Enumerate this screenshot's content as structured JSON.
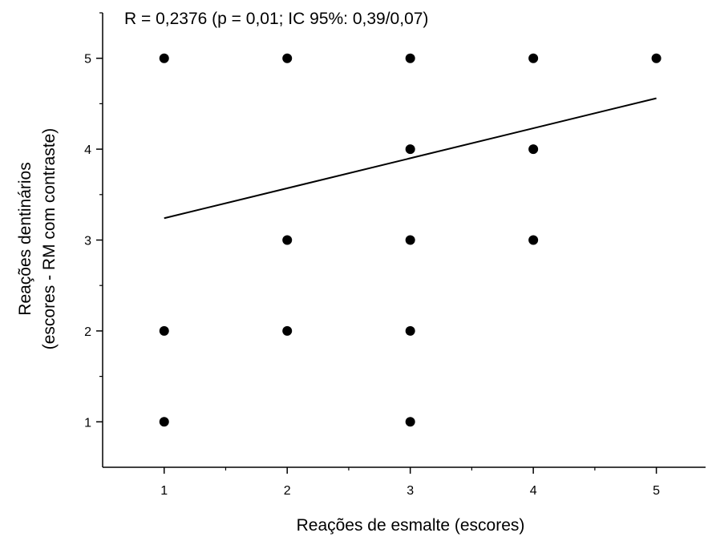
{
  "chart_data": {
    "type": "scatter",
    "annotation": "R = 0,2376 (p = 0,01; IC 95%: 0,39/0,07)",
    "xlabel": "Reações de esmalte (escores)",
    "ylabel_line1": "Reações dentinários",
    "ylabel_line2": "(escores - RM com contraste)",
    "xlim": [
      0.5,
      5.4
    ],
    "ylim": [
      0.5,
      5.5
    ],
    "x_ticks": [
      "1",
      "2",
      "3",
      "4",
      "5"
    ],
    "y_ticks": [
      "1",
      "2",
      "3",
      "4",
      "5"
    ],
    "points": [
      {
        "x": 1,
        "y": 5
      },
      {
        "x": 2,
        "y": 5
      },
      {
        "x": 3,
        "y": 5
      },
      {
        "x": 4,
        "y": 5
      },
      {
        "x": 5,
        "y": 5
      },
      {
        "x": 3,
        "y": 4
      },
      {
        "x": 4,
        "y": 4
      },
      {
        "x": 2,
        "y": 3
      },
      {
        "x": 3,
        "y": 3
      },
      {
        "x": 4,
        "y": 3
      },
      {
        "x": 1,
        "y": 2
      },
      {
        "x": 2,
        "y": 2
      },
      {
        "x": 3,
        "y": 2
      },
      {
        "x": 1,
        "y": 1
      },
      {
        "x": 3,
        "y": 1
      }
    ],
    "regression_line": {
      "x": [
        1,
        5
      ],
      "y": [
        3.24,
        4.56
      ]
    },
    "grid": false,
    "marker_color": "#000000",
    "line_color": "#000000"
  }
}
